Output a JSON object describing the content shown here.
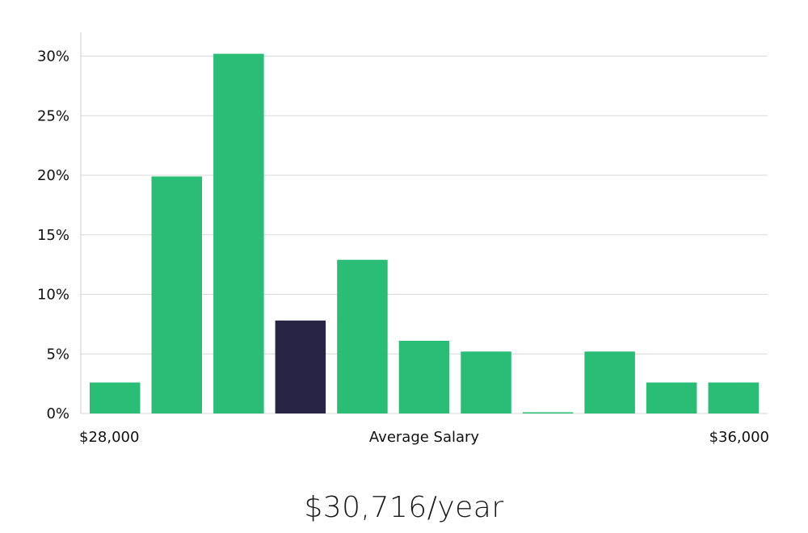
{
  "chart_data": {
    "type": "bar",
    "xlabel": "Average Salary",
    "x_range_labels": [
      "$28,000",
      "$36,000"
    ],
    "bins": 11,
    "values": [
      2.6,
      19.9,
      30.2,
      7.8,
      12.9,
      6.1,
      5.2,
      0.1,
      5.2,
      2.6,
      2.6
    ],
    "highlight_index": 3,
    "ylim": [
      0,
      32
    ],
    "yticks": [
      0,
      5,
      10,
      15,
      20,
      25,
      30
    ],
    "ytick_suffix": "%",
    "grid": "horizontal",
    "colors": {
      "bar": "#2abd75",
      "highlight": "#272445",
      "grid": "#d9d9d9",
      "axis": "#cccccc"
    }
  },
  "summary": {
    "salary_text": "$30,716/year"
  }
}
